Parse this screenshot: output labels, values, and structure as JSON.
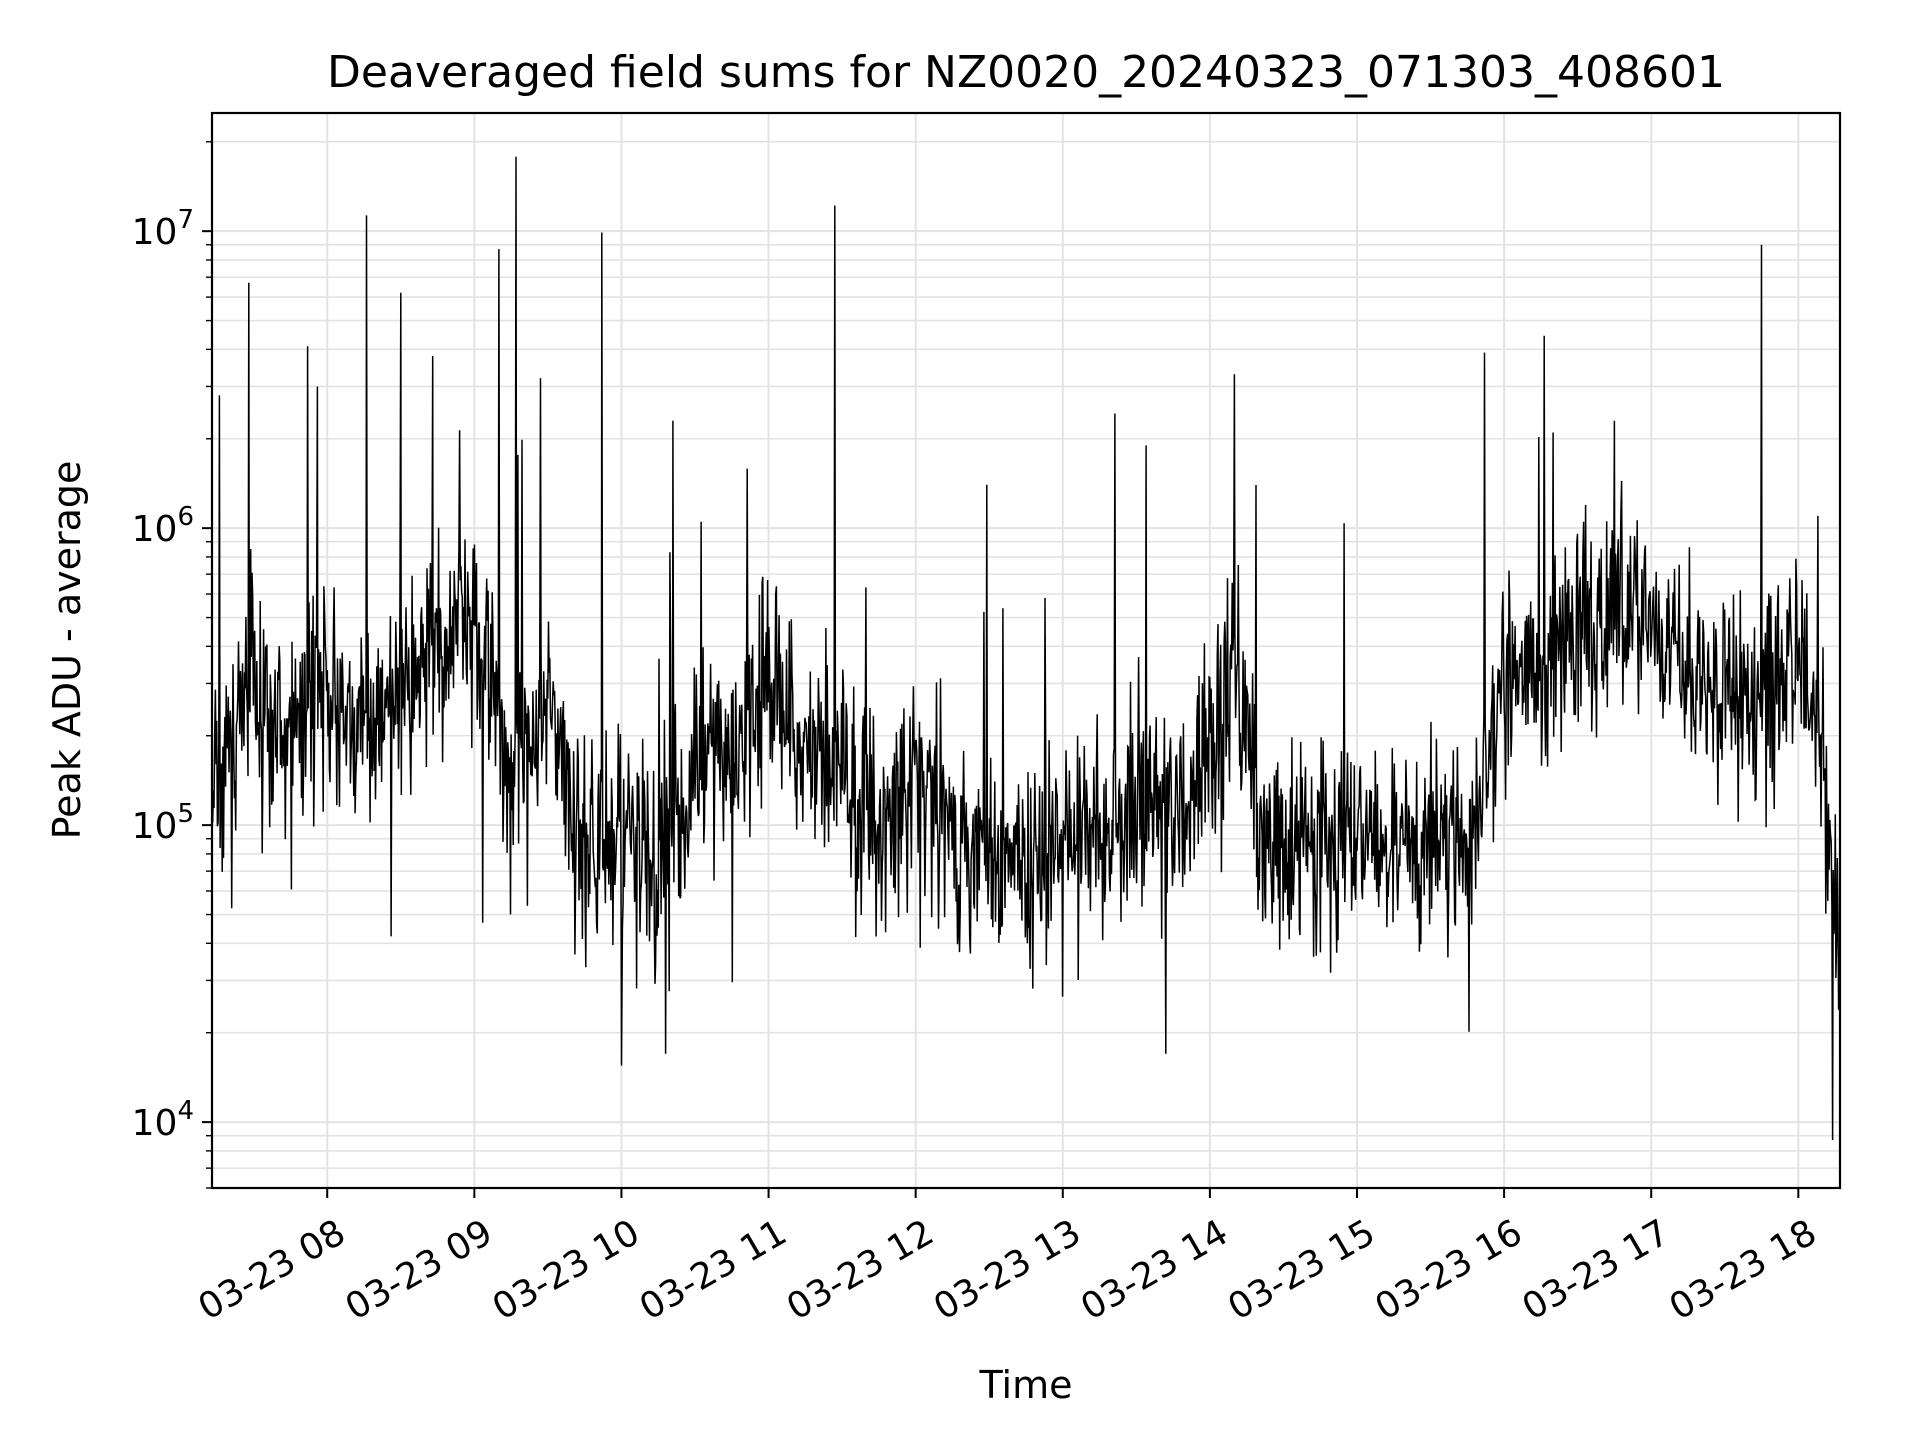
{
  "chart_data": {
    "type": "line",
    "title": "Deaveraged field sums for NZ0020_20240323_071303_408601",
    "xlabel": "Time",
    "ylabel": "Peak ADU - average",
    "yscale": "log",
    "ylim": [
      6000,
      25000000
    ],
    "xlim": [
      "2024-03-23 07:13",
      "2024-03-23 18:17"
    ],
    "grid": true,
    "line_color": "#000000",
    "x_ticks": [
      "03-23 08",
      "03-23 09",
      "03-23 10",
      "03-23 11",
      "03-23 12",
      "03-23 13",
      "03-23 14",
      "03-23 15",
      "03-23 16",
      "03-23 17",
      "03-23 18"
    ],
    "y_ticks": [
      {
        "base": "10",
        "exp": "4",
        "value": 10000
      },
      {
        "base": "10",
        "exp": "5",
        "value": 100000
      },
      {
        "base": "10",
        "exp": "6",
        "value": 1000000
      },
      {
        "base": "10",
        "exp": "7",
        "value": 10000000
      }
    ],
    "series": [
      {
        "x": [
          "2024-03-23 07:13",
          "2024-03-23 07:25",
          "2024-03-23 07:40",
          "2024-03-23 07:55",
          "2024-03-23 08:10",
          "2024-03-23 08:25",
          "2024-03-23 08:40",
          "2024-03-23 08:55",
          "2024-03-23 09:05",
          "2024-03-23 09:15",
          "2024-03-23 09:30",
          "2024-03-23 09:45",
          "2024-03-23 10:00",
          "2024-03-23 10:15",
          "2024-03-23 10:30",
          "2024-03-23 10:45",
          "2024-03-23 11:00",
          "2024-03-23 11:15",
          "2024-03-23 11:30",
          "2024-03-23 11:45",
          "2024-03-23 12:00",
          "2024-03-23 12:15",
          "2024-03-23 12:30",
          "2024-03-23 12:45",
          "2024-03-23 13:00",
          "2024-03-23 13:15",
          "2024-03-23 13:30",
          "2024-03-23 13:45",
          "2024-03-23 14:00",
          "2024-03-23 14:10",
          "2024-03-23 14:20",
          "2024-03-23 14:35",
          "2024-03-23 14:50",
          "2024-03-23 15:05",
          "2024-03-23 15:20",
          "2024-03-23 15:35",
          "2024-03-23 15:50",
          "2024-03-23 16:00",
          "2024-03-23 16:15",
          "2024-03-23 16:30",
          "2024-03-23 16:45",
          "2024-03-23 17:00",
          "2024-03-23 17:15",
          "2024-03-23 17:30",
          "2024-03-23 17:45",
          "2024-03-23 18:00",
          "2024-03-23 18:10",
          "2024-03-23 18:17"
        ],
        "y": [
          120000,
          250000,
          220000,
          300000,
          220000,
          250000,
          350000,
          450000,
          400000,
          150000,
          300000,
          80000,
          90000,
          70000,
          150000,
          150000,
          300000,
          180000,
          150000,
          100000,
          150000,
          100000,
          80000,
          70000,
          90000,
          100000,
          110000,
          100000,
          200000,
          400000,
          90000,
          80000,
          90000,
          80000,
          100000,
          90000,
          100000,
          300000,
          400000,
          450000,
          500000,
          500000,
          300000,
          300000,
          280000,
          400000,
          150000,
          30000
        ]
      }
    ],
    "spikes": [
      {
        "x": "2024-03-23 07:16",
        "y": 2800000
      },
      {
        "x": "2024-03-23 07:28",
        "y": 6700000
      },
      {
        "x": "2024-03-23 07:52",
        "y": 4100000
      },
      {
        "x": "2024-03-23 07:56",
        "y": 3000000
      },
      {
        "x": "2024-03-23 08:16",
        "y": 11300000
      },
      {
        "x": "2024-03-23 08:30",
        "y": 2400000
      },
      {
        "x": "2024-03-23 08:30",
        "y": 6200000
      },
      {
        "x": "2024-03-23 08:43",
        "y": 3800000
      },
      {
        "x": "2024-03-23 09:10",
        "y": 8700000
      },
      {
        "x": "2024-03-23 09:17",
        "y": 17800000
      },
      {
        "x": "2024-03-23 09:27",
        "y": 3200000
      },
      {
        "x": "2024-03-23 09:52",
        "y": 9900000
      },
      {
        "x": "2024-03-23 10:21",
        "y": 2300000
      },
      {
        "x": "2024-03-23 11:27",
        "y": 12200000
      },
      {
        "x": "2024-03-23 12:29",
        "y": 1400000
      },
      {
        "x": "2024-03-23 13:34",
        "y": 1900000
      },
      {
        "x": "2024-03-23 14:10",
        "y": 3300000
      },
      {
        "x": "2024-03-23 15:52",
        "y": 3900000
      },
      {
        "x": "2024-03-23 16:20",
        "y": 2100000
      },
      {
        "x": "2024-03-23 16:45",
        "y": 2300000
      },
      {
        "x": "2024-03-23 17:45",
        "y": 9000000
      },
      {
        "x": "2024-03-23 18:08",
        "y": 1100000
      }
    ],
    "dips": [
      {
        "x": "2024-03-23 10:00",
        "y": 15500
      },
      {
        "x": "2024-03-23 10:18",
        "y": 17000
      },
      {
        "x": "2024-03-23 13:42",
        "y": 17000
      },
      {
        "x": "2024-03-23 18:14",
        "y": 8700
      }
    ]
  }
}
